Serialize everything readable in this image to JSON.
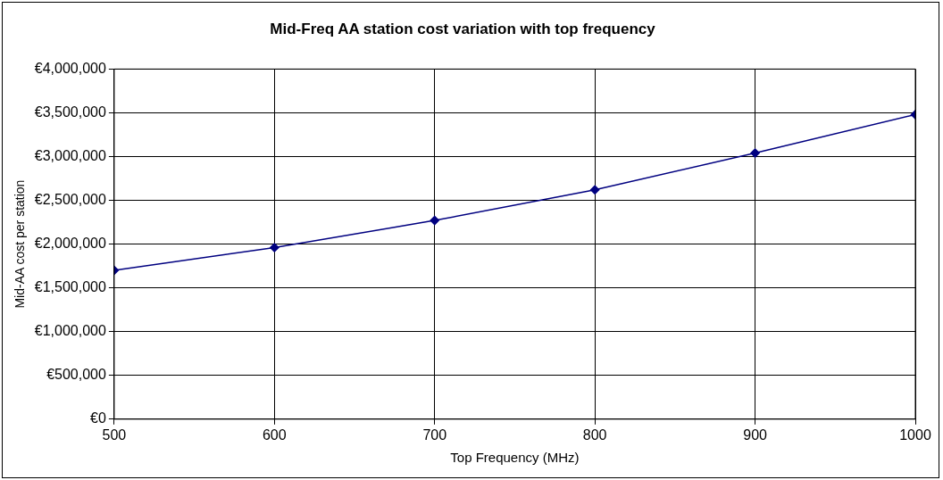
{
  "chart_data": {
    "type": "line",
    "title": "Mid-Freq AA station cost variation with top frequency",
    "xlabel": "Top Frequency (MHz)",
    "ylabel": "Mid-AA cost per station",
    "x": [
      500,
      600,
      700,
      800,
      900,
      1000
    ],
    "series": [
      {
        "color": "#000080",
        "values": [
          1700000,
          1960000,
          2270000,
          2620000,
          3040000,
          3480000
        ]
      }
    ],
    "xlim": [
      500,
      1000
    ],
    "xticks": [
      500,
      600,
      700,
      800,
      900,
      1000
    ],
    "ylim": [
      0,
      4000000
    ],
    "yticks": [
      {
        "value": 0,
        "label": "€0"
      },
      {
        "value": 500000,
        "label": "€500,000"
      },
      {
        "value": 1000000,
        "label": "€1,000,000"
      },
      {
        "value": 1500000,
        "label": "€1,500,000"
      },
      {
        "value": 2000000,
        "label": "€2,000,000"
      },
      {
        "value": 2500000,
        "label": "€2,500,000"
      },
      {
        "value": 3000000,
        "label": "€3,000,000"
      },
      {
        "value": 3500000,
        "label": "€3,500,000"
      },
      {
        "value": 4000000,
        "label": "€4,000,000"
      }
    ],
    "grid": true,
    "legend": false,
    "marker": "diamond",
    "line_style": "solid"
  }
}
